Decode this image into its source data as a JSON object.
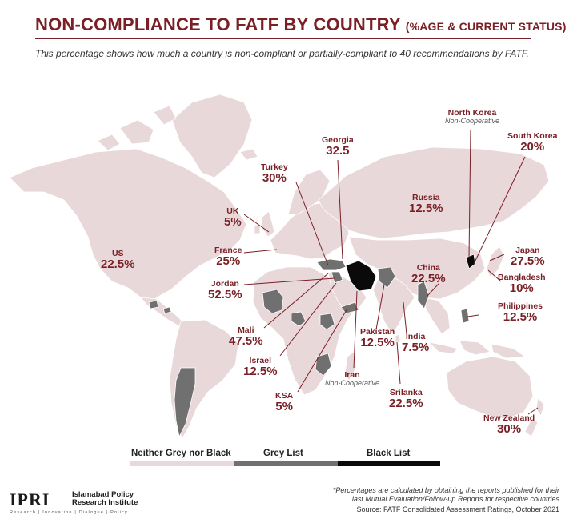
{
  "header": {
    "title_main": "NON-COMPLIANCE TO FATF BY COUNTRY",
    "title_sub": "(%AGE & CURRENT STATUS)",
    "subtitle": "This percentage shows how much a country is non-compliant or partially-compliant to 40 recommendations by FATF."
  },
  "colors": {
    "neither": "#e9d8da",
    "grey": "#707070",
    "black": "#0a0a0a",
    "accent": "#7a1f25",
    "border": "#ffffff"
  },
  "countries": {
    "us": {
      "name": "US",
      "value": "22.5%"
    },
    "uk": {
      "name": "UK",
      "value": "5%"
    },
    "france": {
      "name": "France",
      "value": "25%"
    },
    "turkey": {
      "name": "Turkey",
      "value": "30%"
    },
    "georgia": {
      "name": "Georgia",
      "value": "32.5"
    },
    "russia": {
      "name": "Russia",
      "value": "12.5%"
    },
    "north_korea": {
      "name": "North Korea",
      "status": "Non-Cooperative"
    },
    "south_korea": {
      "name": "South Korea",
      "value": "20%"
    },
    "japan": {
      "name": "Japan",
      "value": "27.5%"
    },
    "china": {
      "name": "China",
      "value": "22.5%"
    },
    "bangladesh": {
      "name": "Bangladesh",
      "value": "10%"
    },
    "philippines": {
      "name": "Philippines",
      "value": "12.5%"
    },
    "jordan": {
      "name": "Jordan",
      "value": "52.5%"
    },
    "mali": {
      "name": "Mali",
      "value": "47.5%"
    },
    "israel": {
      "name": "Israel",
      "value": "12.5%"
    },
    "ksa": {
      "name": "KSA",
      "value": "5%"
    },
    "iran": {
      "name": "Iran",
      "status": "Non-Cooperative"
    },
    "pakistan": {
      "name": "Pakistan",
      "value": "12.5%"
    },
    "india": {
      "name": "India",
      "value": "7.5%"
    },
    "srilanka": {
      "name": "Srilanka",
      "value": "22.5%"
    },
    "new_zealand": {
      "name": "New Zealand",
      "value": "30%"
    }
  },
  "legend": {
    "neither": "Neither Grey nor Black",
    "grey": "Grey List",
    "black": "Black List"
  },
  "footer": {
    "logo": "IPRI",
    "org_line1": "Islamabad Policy",
    "org_line2": "Research Institute",
    "tagline": "Research | Innovation | Dialogue | Policy",
    "note_line1": "*Percentages are calculated by obtaining the reports published for their",
    "note_line2": "last Mutual Evaluation/Follow-up Reports for respective countries",
    "source": "Source: FATF Consolidated Assessment Ratings, October 2021"
  }
}
